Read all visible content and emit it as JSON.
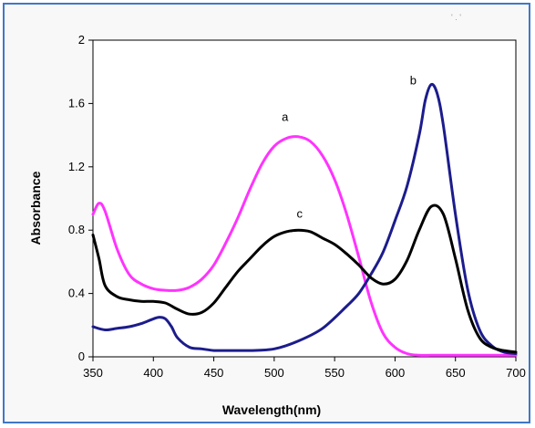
{
  "chart_data": {
    "type": "line",
    "title": "",
    "xlabel": "Wavelength(nm)",
    "ylabel": "Absorbance",
    "xlim": [
      350,
      700
    ],
    "ylim": [
      0,
      2
    ],
    "x_ticks": [
      "350",
      "400",
      "450",
      "500",
      "550",
      "600",
      "650",
      "700"
    ],
    "y_ticks": [
      "0",
      "0.4",
      "0.8",
      "1.2",
      "1.6",
      "2"
    ],
    "grid": false,
    "legend": "none",
    "series": [
      {
        "name": "a",
        "color": "#ff33ff",
        "label_at": [
          509,
          1.49
        ],
        "x": [
          350,
          355,
          360,
          370,
          380,
          390,
          400,
          410,
          420,
          430,
          440,
          450,
          460,
          470,
          480,
          490,
          500,
          510,
          520,
          530,
          540,
          550,
          560,
          570,
          580,
          590,
          600,
          610,
          620,
          630,
          640,
          650,
          700
        ],
        "y": [
          0.9,
          0.97,
          0.92,
          0.68,
          0.52,
          0.46,
          0.43,
          0.42,
          0.42,
          0.44,
          0.49,
          0.58,
          0.72,
          0.88,
          1.06,
          1.22,
          1.33,
          1.38,
          1.39,
          1.36,
          1.27,
          1.12,
          0.9,
          0.63,
          0.35,
          0.15,
          0.06,
          0.02,
          0.01,
          0.01,
          0.01,
          0.01,
          0.01
        ]
      },
      {
        "name": "b",
        "color": "#1c1c8c",
        "label_at": [
          615,
          1.72
        ],
        "x": [
          350,
          360,
          370,
          380,
          390,
          400,
          405,
          410,
          415,
          420,
          430,
          440,
          450,
          460,
          480,
          500,
          520,
          540,
          560,
          570,
          580,
          590,
          600,
          610,
          620,
          625,
          630,
          635,
          640,
          650,
          660,
          670,
          680,
          690,
          700
        ],
        "y": [
          0.19,
          0.17,
          0.18,
          0.19,
          0.21,
          0.24,
          0.25,
          0.24,
          0.19,
          0.12,
          0.06,
          0.05,
          0.04,
          0.04,
          0.04,
          0.05,
          0.1,
          0.18,
          0.32,
          0.4,
          0.52,
          0.66,
          0.86,
          1.08,
          1.4,
          1.62,
          1.72,
          1.66,
          1.46,
          0.9,
          0.43,
          0.17,
          0.07,
          0.03,
          0.02
        ]
      },
      {
        "name": "c",
        "color": "#000000",
        "label_at": [
          521,
          0.88
        ],
        "x": [
          350,
          355,
          360,
          370,
          380,
          390,
          400,
          410,
          420,
          430,
          440,
          450,
          460,
          470,
          480,
          490,
          500,
          510,
          520,
          530,
          540,
          550,
          560,
          570,
          580,
          590,
          600,
          610,
          620,
          630,
          640,
          650,
          660,
          670,
          680,
          690,
          700
        ],
        "y": [
          0.77,
          0.62,
          0.45,
          0.38,
          0.36,
          0.35,
          0.35,
          0.34,
          0.3,
          0.27,
          0.28,
          0.34,
          0.44,
          0.54,
          0.62,
          0.7,
          0.76,
          0.79,
          0.8,
          0.79,
          0.75,
          0.71,
          0.65,
          0.58,
          0.5,
          0.46,
          0.49,
          0.61,
          0.8,
          0.95,
          0.9,
          0.62,
          0.3,
          0.12,
          0.06,
          0.04,
          0.03
        ]
      }
    ]
  },
  "header_marks": "' . '"
}
